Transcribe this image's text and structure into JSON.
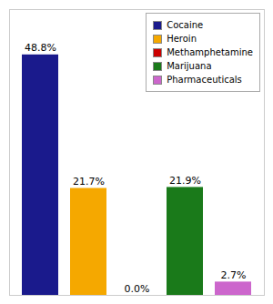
{
  "chart_data": {
    "type": "bar",
    "categories": [
      "Cocaine",
      "Heroin",
      "Methamphetamine",
      "Marijuana",
      "Pharmaceuticals"
    ],
    "values": [
      48.8,
      21.7,
      0.0,
      21.9,
      2.7
    ],
    "value_labels": [
      "48.8%",
      "21.7%",
      "0.0%",
      "21.9%",
      "2.7%"
    ],
    "colors": [
      "#1a1a8c",
      "#f5a800",
      "#cc0000",
      "#1a7a1a",
      "#cc66cc"
    ],
    "ylim": [
      0,
      58
    ],
    "yticks": [],
    "data_labels": true,
    "tick_labels": false,
    "legend": "upper right",
    "grid": false
  }
}
